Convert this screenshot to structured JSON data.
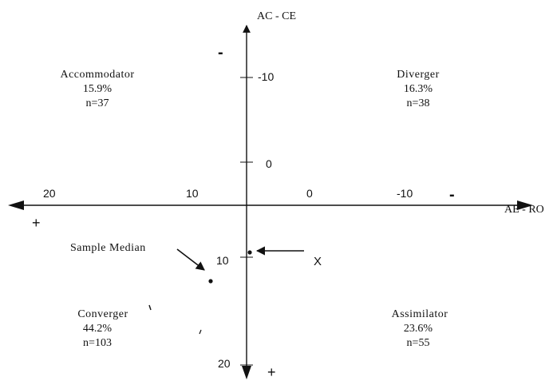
{
  "axes": {
    "vertical_label": "AC - CE",
    "horizontal_label": "AE - RO",
    "vertical_ticks": [
      "-10",
      "0",
      "10",
      "20"
    ],
    "horizontal_ticks": [
      "20",
      "10",
      "0",
      "-10"
    ],
    "top_sign": "-",
    "bottom_sign": "+",
    "left_sign": "+",
    "right_sign": "-"
  },
  "quadrants": {
    "accommodator": {
      "name": "Accommodator",
      "percent": "15.9%",
      "n": "n=37"
    },
    "diverger": {
      "name": "Diverger",
      "percent": "16.3%",
      "n": "n=38"
    },
    "converger": {
      "name": "Converger",
      "percent": "44.2%",
      "n": "n=103"
    },
    "assimilator": {
      "name": "Assimilator",
      "percent": "23.6%",
      "n": "n=55"
    }
  },
  "annotations": {
    "sample_median": "Sample Median",
    "x_marker": "X"
  },
  "colors": {
    "ink": "#111111",
    "background": "#ffffff"
  }
}
